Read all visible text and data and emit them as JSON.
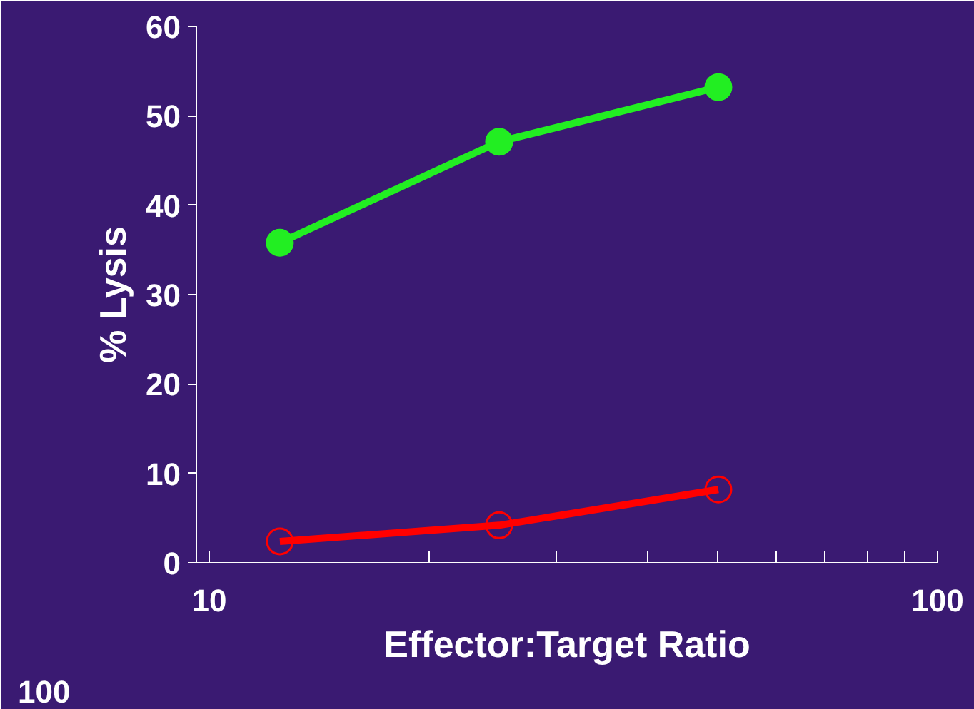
{
  "chart_data": {
    "type": "line",
    "log": "x",
    "xlabel": "Effector:Target Ratio",
    "ylabel": "% Lysis",
    "annotations": [
      "100"
    ],
    "xlim": [
      9.6,
      100
    ],
    "xticks": [
      10,
      {
        "value": 20,
        "label": null
      },
      {
        "value": 30,
        "label": null
      },
      {
        "value": 40,
        "label": null
      },
      {
        "value": 50,
        "label": null
      },
      {
        "value": 60,
        "label": null
      },
      {
        "value": 70,
        "label": null
      },
      {
        "value": 80,
        "label": null
      },
      {
        "value": 90,
        "label": null
      },
      100
    ],
    "ylim": [
      0,
      60
    ],
    "yticks": [
      0,
      10,
      20,
      30,
      40,
      50,
      60
    ],
    "line_style": "solid",
    "series": [
      {
        "color": "#22ee22",
        "marker": "circle",
        "x": [
          12.5,
          25,
          50
        ],
        "values": [
          35.8,
          47.1,
          53.2
        ]
      },
      {
        "color": "#ff0000",
        "marker": "open circle",
        "x": [
          12.5,
          25,
          50
        ],
        "values": [
          2.4,
          4.2,
          8.2
        ]
      }
    ]
  }
}
